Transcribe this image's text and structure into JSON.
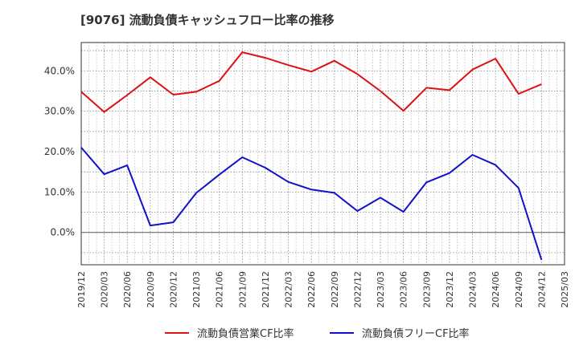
{
  "chart_data": {
    "type": "line",
    "title": "[9076]  流動負債キャッシュフロー比率の推移",
    "x": [
      "2019/12",
      "2020/03",
      "2020/06",
      "2020/09",
      "2020/12",
      "2021/03",
      "2021/06",
      "2021/09",
      "2021/12",
      "2022/03",
      "2022/06",
      "2022/09",
      "2022/12",
      "2023/03",
      "2023/06",
      "2023/09",
      "2023/12",
      "2024/03",
      "2024/06",
      "2024/09",
      "2024/12",
      "2025/03"
    ],
    "y_ticks": [
      "0.0%",
      "10.0%",
      "20.0%",
      "30.0%",
      "40.0%"
    ],
    "y_tick_values": [
      0,
      10,
      20,
      30,
      40
    ],
    "ylim": [
      -8,
      47
    ],
    "grid": true,
    "legend_position": "bottom",
    "series": [
      {
        "name": "流動負債営業CF比率",
        "color": "#dd1111",
        "values": [
          34.8,
          29.8,
          34.0,
          38.4,
          34.1,
          34.8,
          37.5,
          44.6,
          43.2,
          41.4,
          39.8,
          42.5,
          39.2,
          35.0,
          30.1,
          35.8,
          35.2,
          40.3,
          43.0,
          34.3,
          36.7,
          null
        ]
      },
      {
        "name": "流動負債フリーCF比率",
        "color": "#1111cc",
        "values": [
          21.0,
          14.4,
          16.6,
          1.7,
          2.5,
          9.8,
          14.3,
          18.6,
          16.0,
          12.5,
          10.6,
          9.8,
          5.3,
          8.6,
          5.1,
          12.4,
          14.7,
          19.2,
          16.7,
          11.0,
          -6.8,
          null
        ]
      }
    ]
  }
}
